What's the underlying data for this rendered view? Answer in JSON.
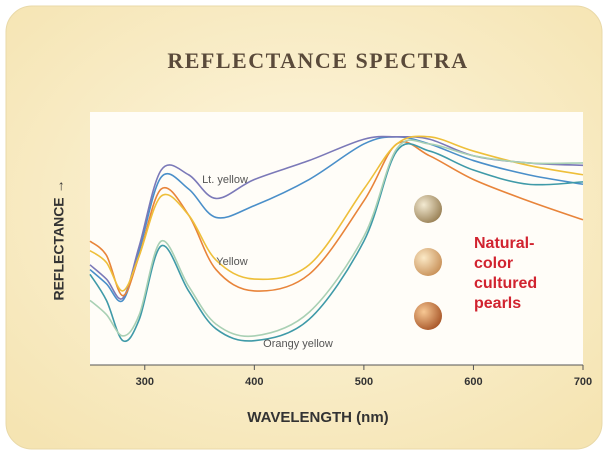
{
  "chart_data": {
    "type": "line",
    "title": "REFLECTANCE SPECTRA",
    "x_label": "WAVELENGTH (nm)",
    "y_label": "REFLECTANCE →",
    "side_text": [
      "Natural-",
      "color",
      "cultured",
      "pearls"
    ],
    "x": [
      250,
      265,
      280,
      295,
      315,
      340,
      365,
      400,
      450,
      500,
      530,
      560,
      600,
      650,
      700
    ],
    "xlim": [
      250,
      700
    ],
    "xticks": [
      300,
      400,
      500,
      600,
      700
    ],
    "ylim": [
      0,
      100
    ],
    "series_groups": [
      {
        "name": "Lt. yellow",
        "lines": [
          {
            "color": "#4a8fc9",
            "values": [
              39,
              33,
              26,
              47,
              78,
              73,
              61,
              66,
              77,
              92,
              95,
              92,
              85,
              79,
              75
            ]
          },
          {
            "color": "#7b79b8",
            "values": [
              41,
              35,
              27,
              49,
              81,
              79,
              69,
              77,
              85,
              94,
              95,
              94,
              87,
              84,
              83
            ]
          }
        ]
      },
      {
        "name": "Yellow",
        "lines": [
          {
            "color": "#e8843a",
            "values": [
              51,
              45,
              28,
              45,
              73,
              62,
              39,
              30,
              37,
              68,
              92,
              87,
              77,
              68,
              60
            ]
          },
          {
            "color": "#eebf3a",
            "values": [
              47,
              42,
              30,
              45,
              70,
              62,
              43,
              35,
              41,
              73,
              92,
              95,
              89,
              83,
              79
            ]
          }
        ]
      },
      {
        "name": "Orangy yellow",
        "lines": [
          {
            "color": "#3f9aa8",
            "values": [
              37,
              26,
              9,
              18,
              49,
              30,
              14,
              9,
              18,
              51,
              89,
              89,
              81,
              75,
              76
            ]
          },
          {
            "color": "#a9d0b4",
            "values": [
              26,
              20,
              11,
              20,
              51,
              32,
              16,
              11,
              21,
              53,
              90,
              92,
              87,
              84,
              84
            ]
          }
        ]
      }
    ]
  }
}
